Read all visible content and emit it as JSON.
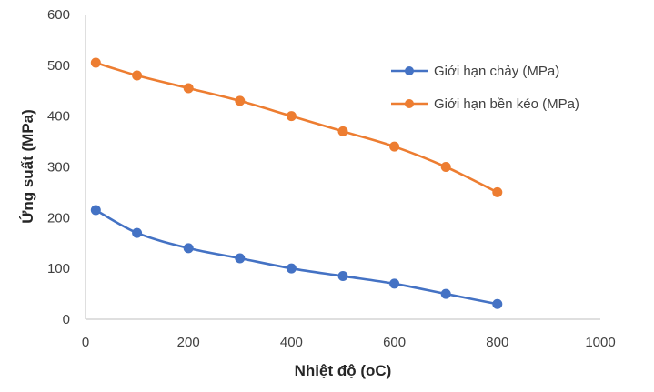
{
  "chart_data": {
    "type": "scatter",
    "title": "",
    "xlabel": "Nhiệt độ (oC)",
    "ylabel": "Ứng suất (MPa)",
    "xlim": [
      0,
      1000
    ],
    "ylim": [
      0,
      600
    ],
    "xticks": [
      "0",
      "200",
      "400",
      "600",
      "800",
      "1000"
    ],
    "yticks": [
      "0",
      "100",
      "200",
      "300",
      "400",
      "500",
      "600"
    ],
    "grid": false,
    "legend_position": "right",
    "series": [
      {
        "name": "Giới hạn chảy (MPa)",
        "color": "#4472C4",
        "x": [
          20,
          100,
          200,
          300,
          400,
          500,
          600,
          700,
          800
        ],
        "y": [
          215,
          170,
          140,
          120,
          100,
          85,
          70,
          50,
          30
        ]
      },
      {
        "name": "Giới hạn bền kéo (MPa)",
        "color": "#ED7D31",
        "x": [
          20,
          100,
          200,
          300,
          400,
          500,
          600,
          700,
          800
        ],
        "y": [
          505,
          480,
          455,
          430,
          400,
          370,
          340,
          300,
          250
        ]
      }
    ]
  }
}
